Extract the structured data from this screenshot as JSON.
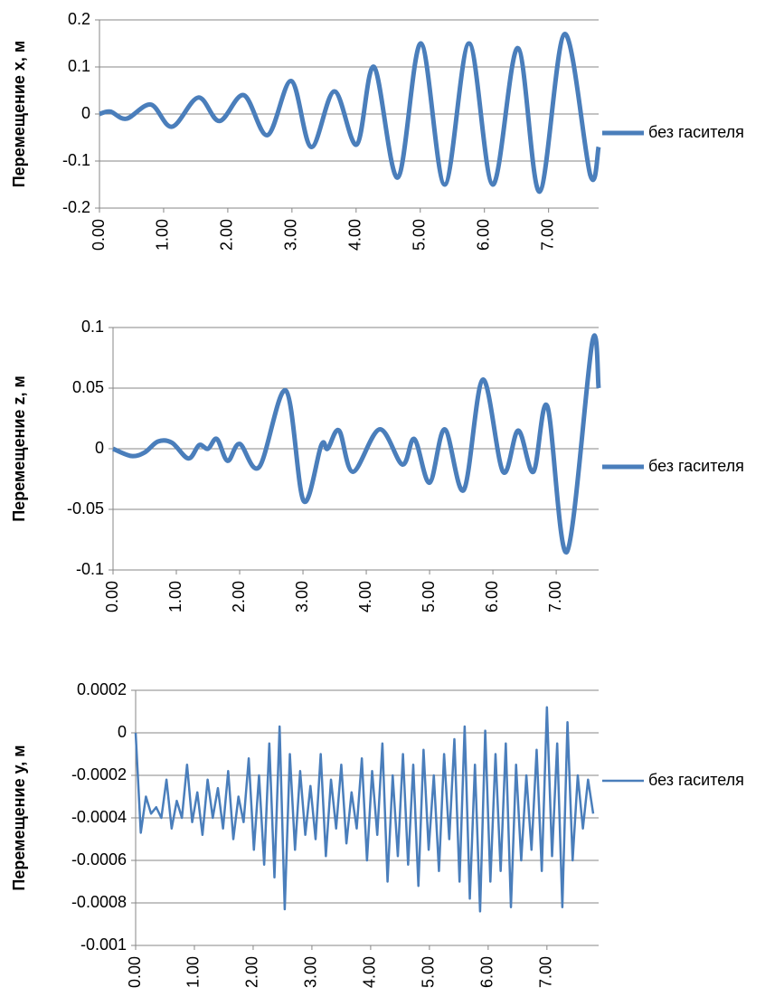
{
  "chart_data": [
    {
      "type": "line",
      "y_label": "Перемещение x, м",
      "smooth": true,
      "x": [
        0,
        0.17,
        0.42,
        0.8,
        1.13,
        1.54,
        1.87,
        2.25,
        2.62,
        2.99,
        3.3,
        3.66,
        4.01,
        4.28,
        4.65,
        5.01,
        5.38,
        5.76,
        6.13,
        6.52,
        6.86,
        7.25,
        7.65,
        7.78
      ],
      "series": [
        {
          "name": "без гасителя",
          "color": "#4a7ebb",
          "values": [
            0,
            0.005,
            -0.01,
            0.02,
            -0.027,
            0.035,
            -0.015,
            0.04,
            -0.045,
            0.07,
            -0.07,
            0.048,
            -0.065,
            0.1,
            -0.135,
            0.15,
            -0.15,
            0.15,
            -0.15,
            0.14,
            -0.165,
            0.17,
            -0.13,
            -0.07
          ]
        }
      ],
      "xlim": [
        0,
        7.78
      ],
      "xticks": [
        {
          "value": 0,
          "label": "0.00"
        },
        {
          "value": 1,
          "label": "1.00"
        },
        {
          "value": 2,
          "label": "2.00"
        },
        {
          "value": 3,
          "label": "3.00"
        },
        {
          "value": 4,
          "label": "4.00"
        },
        {
          "value": 5,
          "label": "5.00"
        },
        {
          "value": 6,
          "label": "6.00"
        },
        {
          "value": 7,
          "label": "7.00"
        }
      ],
      "ylim": [
        -0.2,
        0.2
      ],
      "yticks": [
        0.2,
        0.1,
        0,
        -0.1,
        -0.2
      ],
      "grid": true,
      "legend": "right"
    },
    {
      "type": "line",
      "y_label": "Перемещение z, м",
      "smooth": true,
      "x": [
        0,
        0.29,
        0.5,
        0.71,
        0.93,
        1.19,
        1.36,
        1.5,
        1.64,
        1.81,
        2.0,
        2.31,
        2.73,
        3.01,
        3.29,
        3.39,
        3.57,
        3.79,
        4.21,
        4.57,
        4.76,
        5.0,
        5.24,
        5.54,
        5.84,
        6.16,
        6.4,
        6.64,
        6.86,
        7.17,
        7.57,
        7.67
      ],
      "series": [
        {
          "name": "без гасителя",
          "color": "#4a7ebb",
          "values": [
            0,
            -0.006,
            -0.003,
            0.006,
            0.005,
            -0.008,
            0.003,
            0,
            0.008,
            -0.01,
            0.004,
            -0.015,
            0.048,
            -0.043,
            0.003,
            0,
            0.015,
            -0.019,
            0.016,
            -0.013,
            0.008,
            -0.028,
            0.016,
            -0.034,
            0.057,
            -0.019,
            0.015,
            -0.019,
            0.035,
            -0.085,
            0.088,
            0.05
          ]
        }
      ],
      "xlim": [
        0,
        7.67
      ],
      "xticks": [
        {
          "value": 0,
          "label": "0.00"
        },
        {
          "value": 1,
          "label": "1.00"
        },
        {
          "value": 2,
          "label": "2.00"
        },
        {
          "value": 3,
          "label": "3.00"
        },
        {
          "value": 4,
          "label": "4.00"
        },
        {
          "value": 5,
          "label": "5.00"
        },
        {
          "value": 6,
          "label": "6.00"
        },
        {
          "value": 7,
          "label": "7.00"
        }
      ],
      "ylim": [
        -0.1,
        0.1
      ],
      "yticks": [
        0.1,
        0.05,
        0,
        -0.05,
        -0.1
      ],
      "grid": true,
      "legend": "right"
    },
    {
      "type": "line",
      "y_label": "Перемещение y, м",
      "smooth": false,
      "x": [
        0,
        0.0875,
        0.175,
        0.2625,
        0.35,
        0.4375,
        0.525,
        0.6125,
        0.7,
        0.7875,
        0.875,
        0.9625,
        1.05,
        1.1375,
        1.225,
        1.3125,
        1.4,
        1.4875,
        1.575,
        1.6625,
        1.75,
        1.8375,
        1.925,
        2.0125,
        2.1,
        2.1875,
        2.275,
        2.3625,
        2.45,
        2.5375,
        2.625,
        2.7125,
        2.8,
        2.8875,
        2.975,
        3.0625,
        3.15,
        3.2375,
        3.325,
        3.4125,
        3.5,
        3.5875,
        3.675,
        3.7625,
        3.85,
        3.9375,
        4.025,
        4.1125,
        4.2,
        4.2875,
        4.375,
        4.4625,
        4.55,
        4.6375,
        4.725,
        4.8125,
        4.9,
        4.9875,
        5.075,
        5.1625,
        5.25,
        5.3375,
        5.425,
        5.5125,
        5.6,
        5.6875,
        5.775,
        5.8625,
        5.95,
        6.0375,
        6.125,
        6.2125,
        6.3,
        6.3875,
        6.475,
        6.5625,
        6.65,
        6.7375,
        6.825,
        6.9125,
        7.0,
        7.0875,
        7.175,
        7.2625,
        7.35,
        7.4375,
        7.525,
        7.6125,
        7.7,
        7.7875
      ],
      "series": [
        {
          "name": "без гасителя",
          "color": "#4a7ebb",
          "values": [
            0.0,
            -0.00047,
            -0.0003,
            -0.00038,
            -0.00035,
            -0.0004,
            -0.00022,
            -0.00045,
            -0.00032,
            -0.0004,
            -0.00015,
            -0.00042,
            -0.00028,
            -0.00048,
            -0.00022,
            -0.0004,
            -0.00026,
            -0.00045,
            -0.00018,
            -0.0005,
            -0.0003,
            -0.00042,
            -0.00012,
            -0.00055,
            -0.0002,
            -0.00062,
            -5e-05,
            -0.00068,
            3e-05,
            -0.00083,
            -0.0001,
            -0.00055,
            -0.00018,
            -0.00048,
            -0.00025,
            -0.0005,
            -0.0001,
            -0.00058,
            -0.00022,
            -0.00045,
            -0.00015,
            -0.00052,
            -0.00028,
            -0.00045,
            -0.00012,
            -0.0006,
            -0.00018,
            -0.00048,
            -5e-05,
            -0.0007,
            -0.0002,
            -0.00058,
            -0.0001,
            -0.00062,
            -0.00015,
            -0.00072,
            -8e-05,
            -0.00055,
            -0.0002,
            -0.00065,
            -0.0001,
            -0.0005,
            -3e-05,
            -0.0007,
            3e-05,
            -0.00078,
            -0.00015,
            -0.00084,
            1e-05,
            -0.0007,
            -0.0001,
            -0.00065,
            -5e-05,
            -0.00082,
            -0.00015,
            -0.0006,
            -0.0002,
            -0.00055,
            -8e-05,
            -0.00065,
            0.00012,
            -0.00058,
            -5e-05,
            -0.00082,
            5e-05,
            -0.0006,
            -0.0002,
            -0.00045,
            -0.00022,
            -0.00038
          ]
        }
      ],
      "xlim": [
        0,
        7.88
      ],
      "xticks": [
        {
          "value": 0,
          "label": "0.00"
        },
        {
          "value": 1,
          "label": "1.00"
        },
        {
          "value": 2,
          "label": "2.00"
        },
        {
          "value": 3,
          "label": "3.00"
        },
        {
          "value": 4,
          "label": "4.00"
        },
        {
          "value": 5,
          "label": "5.00"
        },
        {
          "value": 6,
          "label": "6.00"
        },
        {
          "value": 7,
          "label": "7.00"
        }
      ],
      "ylim": [
        -0.001,
        0.0002
      ],
      "yticks": [
        0.0002,
        0,
        -0.0002,
        -0.0004,
        -0.0006,
        -0.0008,
        -0.001
      ],
      "grid": true,
      "legend": "right"
    }
  ]
}
